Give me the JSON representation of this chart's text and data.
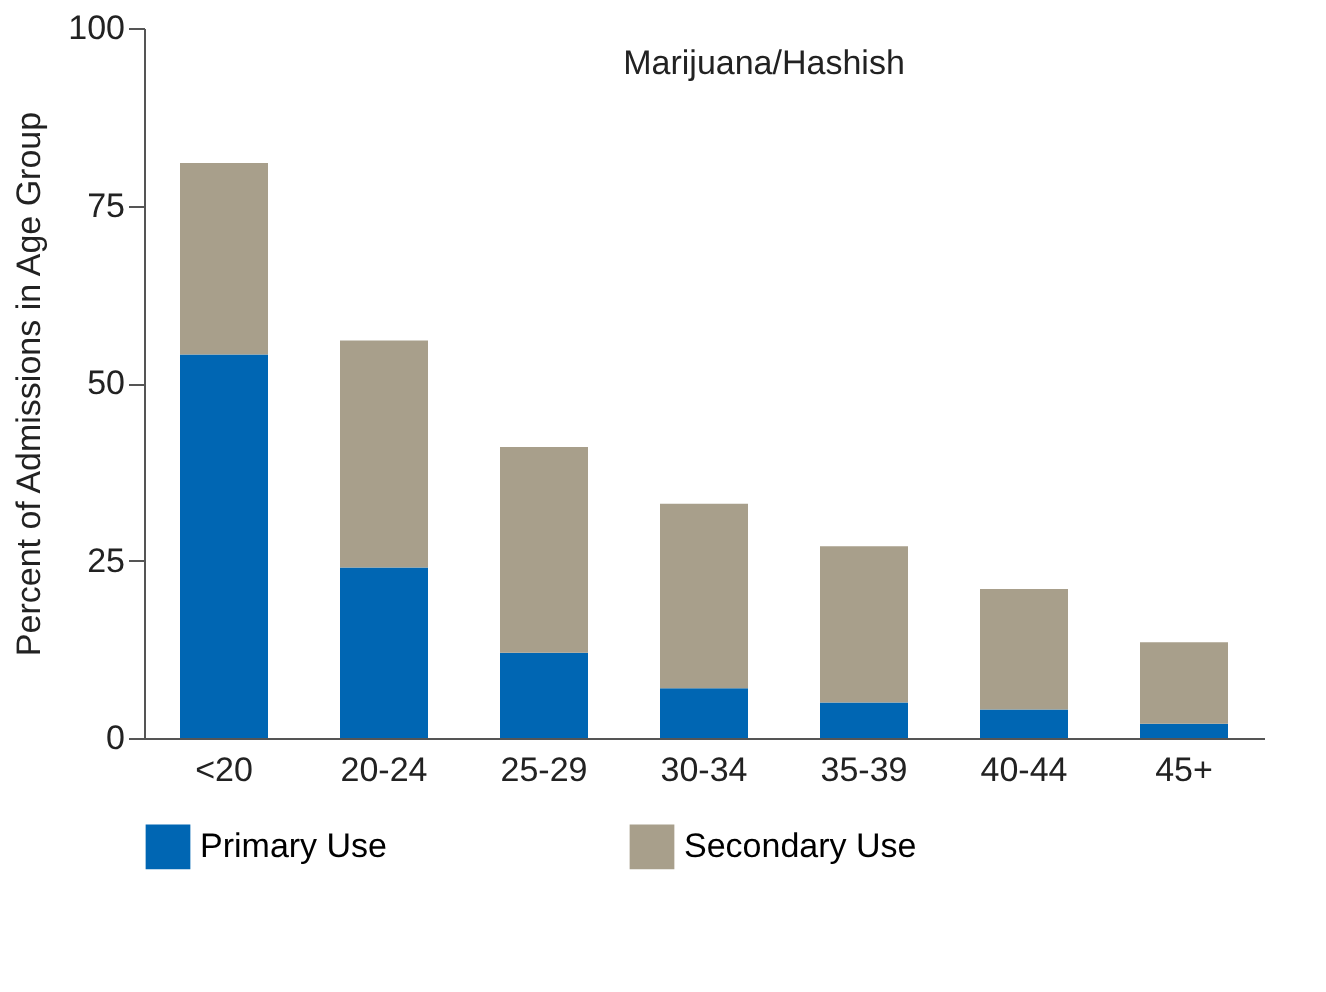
{
  "chart_data": {
    "type": "bar",
    "title": "Marijuana/Hashish",
    "ylabel": "Percent of Admissions in Age Group",
    "categories": [
      "<20",
      "20-24",
      "25-29",
      "30-34",
      "35-39",
      "40-44",
      "45+"
    ],
    "series": [
      {
        "name": "Primary Use",
        "color": "#0066b3",
        "values": [
          54,
          24,
          12,
          7,
          5,
          4,
          2
        ]
      },
      {
        "name": "Secondary Use",
        "color": "#a89f8b",
        "values": [
          27,
          32,
          29,
          26,
          22,
          17,
          11.5
        ]
      }
    ],
    "stacked": true,
    "ylim": [
      0,
      100
    ],
    "yticks": [
      0,
      25,
      50,
      75,
      100
    ],
    "grid": false,
    "legend": "bottom"
  }
}
